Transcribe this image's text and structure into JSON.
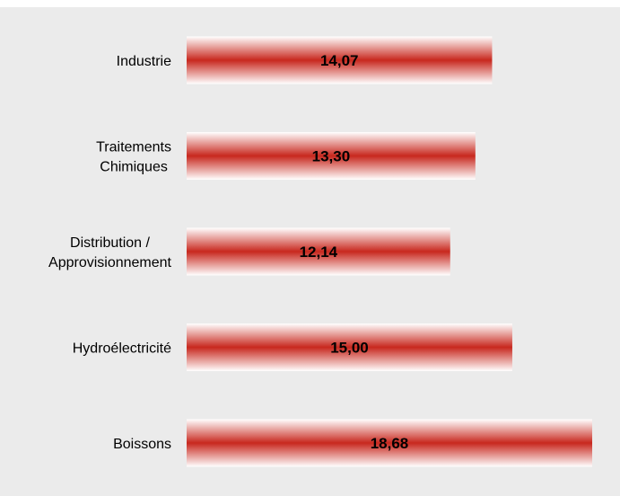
{
  "chart_data": {
    "type": "bar",
    "orientation": "horizontal",
    "categories": [
      [
        "Industrie"
      ],
      [
        "Traitements",
        "Chimiques"
      ],
      [
        "Distribution /",
        "Approvisionnement"
      ],
      [
        "Hydroélectricité"
      ],
      [
        "Boissons"
      ]
    ],
    "values": [
      14.07,
      13.3,
      12.14,
      15.0,
      18.68
    ],
    "value_labels": [
      "14,07",
      "13,30",
      "12,14",
      "15,00",
      "18,68"
    ],
    "xlim": [
      0,
      18.68
    ],
    "grid": false,
    "legend": "none"
  },
  "colors": {
    "background": "#ebebeb",
    "bar_core": "#c8281e",
    "bar_edge": "#ffffff"
  }
}
